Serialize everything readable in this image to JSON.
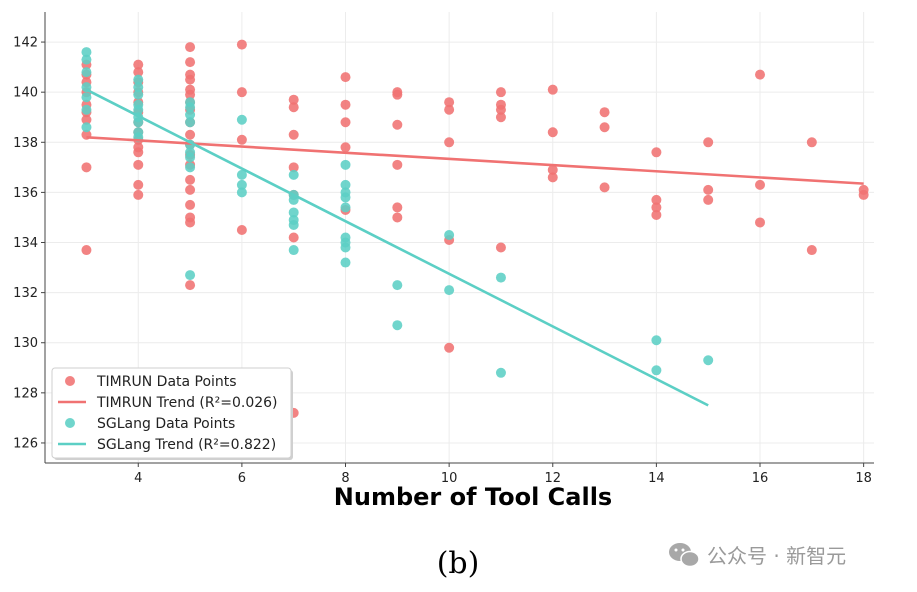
{
  "chart_data": {
    "type": "scatter",
    "title": "",
    "xlabel": "Number of Tool Calls",
    "ylabel": "",
    "xlim": [
      2.2,
      18.2
    ],
    "ylim": [
      125.2,
      143.2
    ],
    "xticks": [
      4,
      6,
      8,
      10,
      12,
      14,
      16,
      18
    ],
    "yticks": [
      126,
      128,
      130,
      132,
      134,
      136,
      138,
      140,
      142
    ],
    "grid": true,
    "legend_position": "bottom-left",
    "series": [
      {
        "name": "TIMRUN Data Points",
        "kind": "scatter",
        "color": "#f07272",
        "points": [
          [
            3,
            133.7
          ],
          [
            3,
            137.0
          ],
          [
            3,
            138.3
          ],
          [
            3,
            138.9
          ],
          [
            3,
            139.2
          ],
          [
            3,
            139.5
          ],
          [
            3,
            140.0
          ],
          [
            3,
            140.4
          ],
          [
            3,
            140.7
          ],
          [
            3,
            141.1
          ],
          [
            4,
            135.9
          ],
          [
            4,
            136.3
          ],
          [
            4,
            137.1
          ],
          [
            4,
            137.6
          ],
          [
            4,
            137.8
          ],
          [
            4,
            138.1
          ],
          [
            4,
            138.4
          ],
          [
            4,
            138.8
          ],
          [
            4,
            139.2
          ],
          [
            4,
            139.6
          ],
          [
            4,
            140.0
          ],
          [
            4,
            140.4
          ],
          [
            4,
            140.8
          ],
          [
            4,
            141.1
          ],
          [
            5,
            132.3
          ],
          [
            5,
            134.8
          ],
          [
            5,
            135.0
          ],
          [
            5,
            135.5
          ],
          [
            5,
            136.1
          ],
          [
            5,
            136.5
          ],
          [
            5,
            137.1
          ],
          [
            5,
            137.5
          ],
          [
            5,
            137.9
          ],
          [
            5,
            138.3
          ],
          [
            5,
            138.8
          ],
          [
            5,
            139.3
          ],
          [
            5,
            139.6
          ],
          [
            5,
            139.9
          ],
          [
            5,
            140.1
          ],
          [
            5,
            140.5
          ],
          [
            5,
            140.7
          ],
          [
            5,
            141.2
          ],
          [
            5,
            141.8
          ],
          [
            6,
            134.5
          ],
          [
            6,
            138.1
          ],
          [
            6,
            140.0
          ],
          [
            6,
            141.9
          ],
          [
            7,
            127.2
          ],
          [
            7,
            134.2
          ],
          [
            7,
            135.9
          ],
          [
            7,
            137.0
          ],
          [
            7,
            138.3
          ],
          [
            7,
            139.4
          ],
          [
            7,
            139.7
          ],
          [
            8,
            135.3
          ],
          [
            8,
            137.8
          ],
          [
            8,
            138.8
          ],
          [
            8,
            139.5
          ],
          [
            8,
            140.6
          ],
          [
            9,
            135.0
          ],
          [
            9,
            135.4
          ],
          [
            9,
            137.1
          ],
          [
            9,
            138.7
          ],
          [
            9,
            139.9
          ],
          [
            9,
            140.0
          ],
          [
            10,
            129.8
          ],
          [
            10,
            134.1
          ],
          [
            10,
            138.0
          ],
          [
            10,
            139.3
          ],
          [
            10,
            139.6
          ],
          [
            11,
            133.8
          ],
          [
            11,
            139.0
          ],
          [
            11,
            139.3
          ],
          [
            11,
            139.5
          ],
          [
            11,
            140.0
          ],
          [
            12,
            136.6
          ],
          [
            12,
            136.9
          ],
          [
            12,
            138.4
          ],
          [
            12,
            140.1
          ],
          [
            13,
            136.2
          ],
          [
            13,
            138.6
          ],
          [
            13,
            139.2
          ],
          [
            14,
            135.1
          ],
          [
            14,
            135.4
          ],
          [
            14,
            135.7
          ],
          [
            14,
            137.6
          ],
          [
            15,
            135.7
          ],
          [
            15,
            136.1
          ],
          [
            15,
            138.0
          ],
          [
            16,
            134.8
          ],
          [
            16,
            136.3
          ],
          [
            16,
            140.7
          ],
          [
            17,
            133.7
          ],
          [
            17,
            138.0
          ],
          [
            18,
            135.9
          ],
          [
            18,
            136.1
          ]
        ]
      },
      {
        "name": "SGLang Data Points",
        "kind": "scatter",
        "color": "#5ccfc5",
        "points": [
          [
            3,
            138.6
          ],
          [
            3,
            139.3
          ],
          [
            3,
            139.8
          ],
          [
            3,
            140.2
          ],
          [
            3,
            140.8
          ],
          [
            3,
            141.3
          ],
          [
            3,
            141.6
          ],
          [
            4,
            138.2
          ],
          [
            4,
            138.4
          ],
          [
            4,
            138.8
          ],
          [
            4,
            139.0
          ],
          [
            4,
            139.3
          ],
          [
            4,
            139.5
          ],
          [
            4,
            139.9
          ],
          [
            4,
            140.2
          ],
          [
            4,
            140.5
          ],
          [
            5,
            132.7
          ],
          [
            5,
            137.0
          ],
          [
            5,
            137.4
          ],
          [
            5,
            137.6
          ],
          [
            5,
            137.9
          ],
          [
            5,
            138.8
          ],
          [
            5,
            139.1
          ],
          [
            5,
            139.4
          ],
          [
            5,
            139.6
          ],
          [
            6,
            136.0
          ],
          [
            6,
            136.3
          ],
          [
            6,
            136.7
          ],
          [
            6,
            138.9
          ],
          [
            7,
            133.7
          ],
          [
            7,
            134.7
          ],
          [
            7,
            134.9
          ],
          [
            7,
            135.2
          ],
          [
            7,
            135.7
          ],
          [
            7,
            135.9
          ],
          [
            7,
            136.7
          ],
          [
            8,
            133.2
          ],
          [
            8,
            133.8
          ],
          [
            8,
            134.0
          ],
          [
            8,
            134.2
          ],
          [
            8,
            135.4
          ],
          [
            8,
            135.8
          ],
          [
            8,
            136.0
          ],
          [
            8,
            136.3
          ],
          [
            8,
            137.1
          ],
          [
            9,
            130.7
          ],
          [
            9,
            132.3
          ],
          [
            10,
            132.1
          ],
          [
            10,
            134.3
          ],
          [
            11,
            128.8
          ],
          [
            11,
            132.6
          ],
          [
            14,
            128.9
          ],
          [
            14,
            130.1
          ],
          [
            15,
            129.3
          ]
        ]
      },
      {
        "name": "TIMRUN Trend (R²=0.026)",
        "kind": "line",
        "color": "#f07272",
        "x": [
          3,
          18
        ],
        "y": [
          138.2,
          136.35
        ]
      },
      {
        "name": "SGLang Trend (R²=0.822)",
        "kind": "line",
        "color": "#5ccfc5",
        "x": [
          3,
          15
        ],
        "y": [
          140.1,
          127.5
        ]
      }
    ],
    "legend": [
      {
        "label": "TIMRUN Data Points",
        "kind": "marker",
        "color": "#f07272"
      },
      {
        "label": "TIMRUN Trend (R²=0.026)",
        "kind": "line",
        "color": "#f07272"
      },
      {
        "label": "SGLang Data Points",
        "kind": "marker",
        "color": "#5ccfc5"
      },
      {
        "label": "SGLang Trend (R²=0.822)",
        "kind": "line",
        "color": "#5ccfc5"
      }
    ]
  },
  "caption": "(b)",
  "watermark": "公众号 · 新智元"
}
